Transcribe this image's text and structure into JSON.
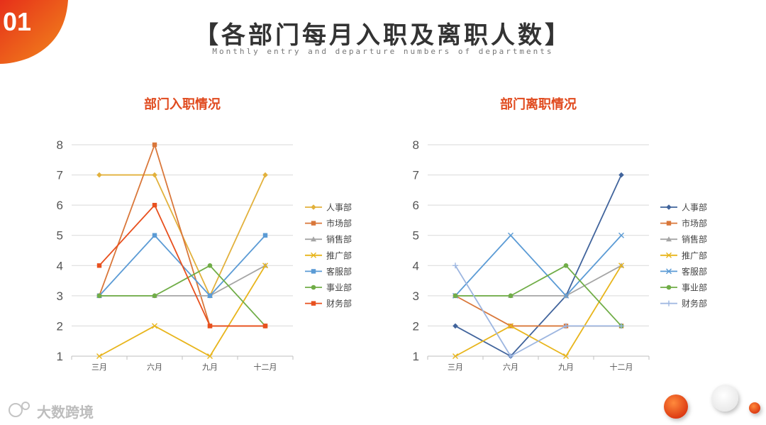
{
  "header": {
    "number": "01",
    "title": "【各部门每月入职及离职人数】",
    "subtitle": "Monthly entry and departure numbers of departments"
  },
  "watermark": "大数跨境",
  "colors": {
    "accent": "#e8451f",
    "title_red": "#e04a1e"
  },
  "chart_data": [
    {
      "type": "line",
      "title": "部门入职情况",
      "categories": [
        "三月",
        "六月",
        "九月",
        "十二月"
      ],
      "ylim": [
        1,
        8
      ],
      "yticks": [
        1,
        2,
        3,
        4,
        5,
        6,
        7,
        8
      ],
      "grid": true,
      "legend_position": "right",
      "series": [
        {
          "name": "人事部",
          "values": [
            7,
            7,
            3,
            7
          ],
          "color": "#e2b13c",
          "marker": "diamond"
        },
        {
          "name": "市场部",
          "values": [
            3,
            8,
            2,
            2
          ],
          "color": "#d9773a",
          "marker": "square"
        },
        {
          "name": "销售部",
          "values": [
            3,
            3,
            3,
            4
          ],
          "color": "#a5a5a5",
          "marker": "triangle"
        },
        {
          "name": "推广部",
          "values": [
            1,
            2,
            1,
            4
          ],
          "color": "#e8b51c",
          "marker": "x"
        },
        {
          "name": "客服部",
          "values": [
            3,
            5,
            3,
            5
          ],
          "color": "#5b9bd5",
          "marker": "square"
        },
        {
          "name": "事业部",
          "values": [
            3,
            3,
            4,
            2
          ],
          "color": "#70ad47",
          "marker": "circle"
        },
        {
          "name": "财务部",
          "values": [
            4,
            6,
            2,
            2
          ],
          "color": "#e8501e",
          "marker": "square"
        }
      ]
    },
    {
      "type": "line",
      "title": "部门离职情况",
      "categories": [
        "三月",
        "六月",
        "九月",
        "十二月"
      ],
      "ylim": [
        1,
        8
      ],
      "yticks": [
        1,
        2,
        3,
        4,
        5,
        6,
        7,
        8
      ],
      "grid": true,
      "legend_position": "right",
      "series": [
        {
          "name": "人事部",
          "values": [
            2,
            1,
            3,
            7
          ],
          "color": "#41649c",
          "marker": "diamond"
        },
        {
          "name": "市场部",
          "values": [
            3,
            2,
            2,
            2
          ],
          "color": "#d9773a",
          "marker": "square"
        },
        {
          "name": "销售部",
          "values": [
            3,
            3,
            3,
            4
          ],
          "color": "#a5a5a5",
          "marker": "triangle"
        },
        {
          "name": "推广部",
          "values": [
            1,
            2,
            1,
            4
          ],
          "color": "#e8b51c",
          "marker": "x"
        },
        {
          "name": "客服部",
          "values": [
            3,
            5,
            3,
            5
          ],
          "color": "#5b9bd5",
          "marker": "x"
        },
        {
          "name": "事业部",
          "values": [
            3,
            3,
            4,
            2
          ],
          "color": "#70ad47",
          "marker": "circle"
        },
        {
          "name": "财务部",
          "values": [
            4,
            1,
            2,
            2
          ],
          "color": "#9db6e0",
          "marker": "plus"
        }
      ]
    }
  ]
}
